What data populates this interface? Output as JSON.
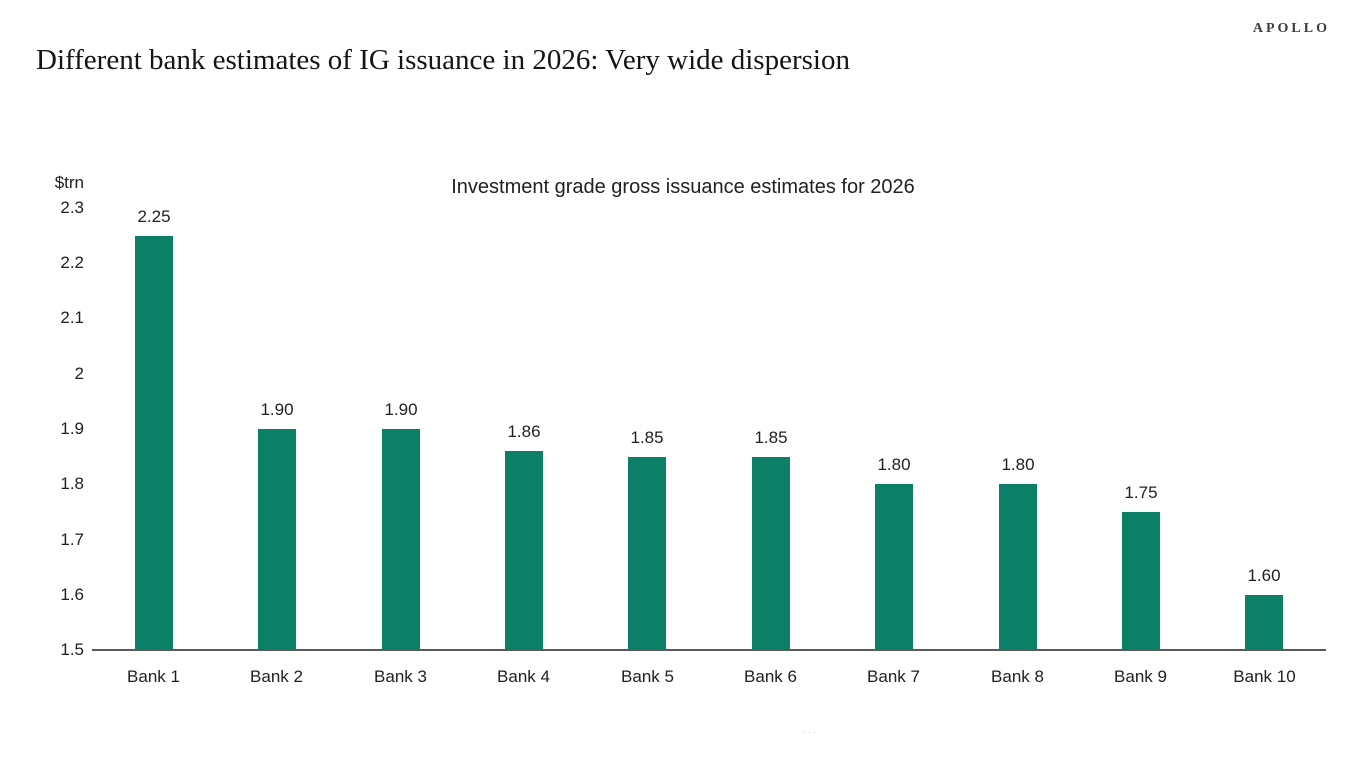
{
  "logo": {
    "text": "APOLLO"
  },
  "page_title": "Different bank estimates of IG issuance in 2026: Very wide dispersion",
  "chart_data": {
    "type": "bar",
    "title": "Investment grade gross issuance estimates for 2026",
    "unit_label": "$trn",
    "categories": [
      "Bank 1",
      "Bank 2",
      "Bank 3",
      "Bank 4",
      "Bank 5",
      "Bank 6",
      "Bank 7",
      "Bank 8",
      "Bank 9",
      "Bank 10"
    ],
    "values": [
      2.25,
      1.9,
      1.9,
      1.86,
      1.85,
      1.85,
      1.8,
      1.8,
      1.75,
      1.6
    ],
    "value_labels": [
      "2.25",
      "1.90",
      "1.90",
      "1.86",
      "1.85",
      "1.85",
      "1.80",
      "1.80",
      "1.75",
      "1.60"
    ],
    "xlabel": "",
    "ylabel": "$trn",
    "ylim": [
      1.5,
      2.3
    ],
    "yticks": [
      2.3,
      2.2,
      2.1,
      2,
      1.9,
      1.8,
      1.7,
      1.6,
      1.5
    ],
    "ytick_labels": [
      "2.3",
      "2.2",
      "2.1",
      "2",
      "1.9",
      "1.8",
      "1.7",
      "1.6",
      "1.5"
    ],
    "bar_color": "#0b8067",
    "axis_line_color": "#595959",
    "grid": false,
    "legend_position": "none"
  },
  "footer": {
    "artifact": "···"
  }
}
